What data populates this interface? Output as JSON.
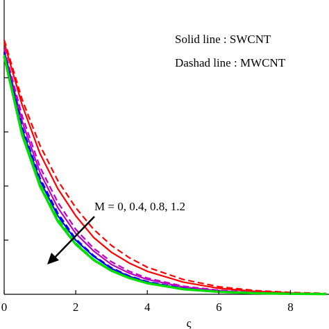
{
  "chart_data": {
    "type": "line",
    "xlabel": "ς",
    "ylabel": "",
    "xlim": [
      0,
      9
    ],
    "ylim": [
      0,
      1.0
    ],
    "x_ticks": [
      0,
      2,
      4,
      6,
      8
    ],
    "x_tick_labels": [
      "0",
      "2",
      "4",
      "6",
      "8"
    ],
    "y_ticks": [
      0.2,
      0.4,
      0.6,
      0.8
    ],
    "grid": false,
    "annotations": {
      "legend_line1": "Solid line : SWCNT",
      "legend_line2": "Dashad line : MWCNT",
      "parameter_label": "M = 0, 0.4, 0.8, 1.2"
    },
    "series": [
      {
        "color": "#ff0000",
        "style": "solid",
        "x": [
          0,
          0.5,
          1,
          1.5,
          2,
          2.5,
          3,
          3.5,
          4,
          5,
          6,
          7,
          8,
          9
        ],
        "y": [
          0.93,
          0.7,
          0.52,
          0.39,
          0.29,
          0.21,
          0.155,
          0.115,
          0.085,
          0.045,
          0.022,
          0.011,
          0.005,
          0.002
        ]
      },
      {
        "color": "#ff0000",
        "style": "dashed",
        "x": [
          0,
          0.5,
          1,
          1.5,
          2,
          2.5,
          3,
          3.5,
          4,
          5,
          6,
          7,
          8,
          9
        ],
        "y": [
          0.94,
          0.72,
          0.55,
          0.42,
          0.32,
          0.24,
          0.18,
          0.135,
          0.1,
          0.055,
          0.028,
          0.014,
          0.007,
          0.003
        ]
      },
      {
        "color": "#c000c0",
        "style": "solid",
        "x": [
          0,
          0.5,
          1,
          1.5,
          2,
          2.5,
          3,
          3.5,
          4,
          5,
          6,
          7,
          8,
          9
        ],
        "y": [
          0.9,
          0.64,
          0.45,
          0.32,
          0.225,
          0.16,
          0.11,
          0.078,
          0.055,
          0.027,
          0.013,
          0.006,
          0.003,
          0.001
        ]
      },
      {
        "color": "#c000c0",
        "style": "dashed",
        "x": [
          0,
          0.5,
          1,
          1.5,
          2,
          2.5,
          3,
          3.5,
          4,
          5,
          6,
          7,
          8,
          9
        ],
        "y": [
          0.91,
          0.66,
          0.47,
          0.34,
          0.24,
          0.17,
          0.12,
          0.085,
          0.06,
          0.03,
          0.015,
          0.007,
          0.003,
          0.001
        ]
      },
      {
        "color": "#0000ff",
        "style": "solid",
        "x": [
          0,
          0.5,
          1,
          1.5,
          2,
          2.5,
          3,
          3.5,
          4,
          5,
          6,
          7,
          8,
          9
        ],
        "y": [
          0.89,
          0.61,
          0.42,
          0.29,
          0.2,
          0.14,
          0.095,
          0.066,
          0.045,
          0.021,
          0.01,
          0.005,
          0.002,
          0.001
        ]
      },
      {
        "color": "#0000ff",
        "style": "dashed",
        "x": [
          0,
          0.5,
          1,
          1.5,
          2,
          2.5,
          3,
          3.5,
          4,
          5,
          6,
          7,
          8,
          9
        ],
        "y": [
          0.895,
          0.62,
          0.43,
          0.3,
          0.205,
          0.143,
          0.098,
          0.068,
          0.047,
          0.022,
          0.011,
          0.005,
          0.002,
          0.001
        ]
      },
      {
        "color": "#00e000",
        "style": "solid",
        "x": [
          0,
          0.5,
          1,
          1.5,
          2,
          2.5,
          3,
          3.5,
          4,
          5,
          6,
          7,
          8,
          9
        ],
        "y": [
          0.88,
          0.59,
          0.4,
          0.27,
          0.185,
          0.127,
          0.087,
          0.06,
          0.041,
          0.019,
          0.009,
          0.004,
          0.002,
          0.001
        ]
      },
      {
        "color": "#00e000",
        "style": "dashed",
        "x": [
          0,
          0.5,
          1,
          1.5,
          2,
          2.5,
          3,
          3.5,
          4,
          5,
          6,
          7,
          8,
          9
        ],
        "y": [
          0.885,
          0.6,
          0.41,
          0.28,
          0.19,
          0.13,
          0.089,
          0.061,
          0.042,
          0.02,
          0.009,
          0.004,
          0.002,
          0.001
        ]
      }
    ]
  }
}
